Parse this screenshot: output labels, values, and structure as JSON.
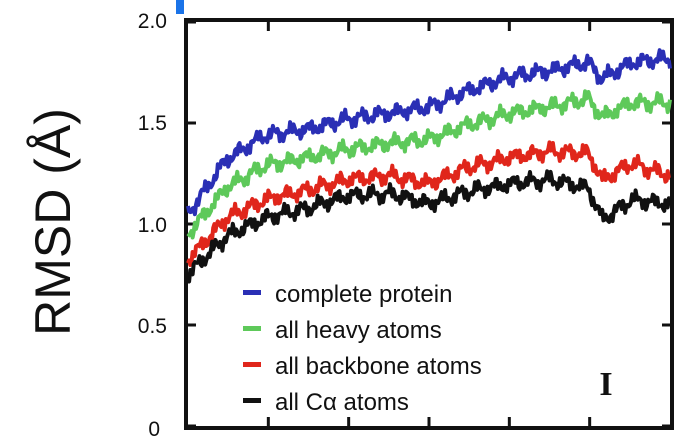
{
  "chart_data": {
    "type": "line",
    "ylabel": "RMSD (Å)",
    "xlabel": "",
    "title": "",
    "panel_label": "I",
    "ylim": [
      0,
      2.0
    ],
    "y_ticks": [
      "0",
      "0.5",
      "1.0",
      "1.5",
      "2.0"
    ],
    "x": [
      0.0,
      0.08,
      0.16,
      0.25,
      0.33,
      0.42,
      0.5,
      0.58,
      0.67,
      0.75,
      0.83,
      0.86,
      0.92,
      1.0
    ],
    "series": [
      {
        "name": "complete protein",
        "color": "#2a2fb5",
        "values": [
          1.05,
          1.32,
          1.44,
          1.47,
          1.52,
          1.55,
          1.58,
          1.66,
          1.73,
          1.76,
          1.8,
          1.72,
          1.8,
          1.82
        ]
      },
      {
        "name": "all heavy atoms",
        "color": "#5ec95a",
        "values": [
          0.95,
          1.18,
          1.29,
          1.33,
          1.37,
          1.4,
          1.42,
          1.49,
          1.55,
          1.58,
          1.62,
          1.53,
          1.6,
          1.6
        ]
      },
      {
        "name": "all backbone atoms",
        "color": "#e0261b",
        "values": [
          0.82,
          1.03,
          1.12,
          1.17,
          1.22,
          1.24,
          1.2,
          1.28,
          1.33,
          1.36,
          1.35,
          1.22,
          1.3,
          1.24
        ]
      },
      {
        "name": "all Cα atoms",
        "color": "#111111",
        "values": [
          0.75,
          0.94,
          1.03,
          1.08,
          1.14,
          1.15,
          1.1,
          1.16,
          1.2,
          1.22,
          1.18,
          1.02,
          1.12,
          1.1
        ]
      }
    ],
    "legend": {
      "placement": "bottom-left"
    },
    "grid": false
  }
}
